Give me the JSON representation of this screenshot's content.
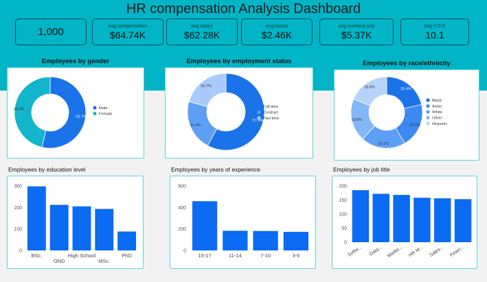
{
  "title": "HR compensation Analysis Dashboard",
  "kpis": [
    {
      "label": "",
      "value": "1,000"
    },
    {
      "label": "avg compensation",
      "value": "$64.74K"
    },
    {
      "label": "avg salary",
      "value": "$62.28K"
    },
    {
      "label": "avg bonus",
      "value": "$2.46K"
    },
    {
      "label": "avg overtime pay",
      "value": "$5.37K"
    },
    {
      "label": "avg Y.O.E",
      "value": "10.1"
    }
  ],
  "colors": {
    "band": "#02b5c6",
    "blue": "#1a73e8",
    "teal": "#12b5cb",
    "bar": "#0b6bf3"
  },
  "chart_data": [
    {
      "type": "pie",
      "title": "Employees by gender",
      "labels": [
        "Male",
        "Female"
      ],
      "values": [
        53.7,
        46.3
      ],
      "slice_labels": [
        "53.7%",
        "46.3%"
      ],
      "colors": [
        "#1a73e8",
        "#12b5cb"
      ],
      "legend": "right"
    },
    {
      "type": "pie",
      "title": "Employees by employment status",
      "labels": [
        "Full-time",
        "Contract",
        "Part-time"
      ],
      "values": [
        57.9,
        21.4,
        20.7
      ],
      "slice_labels": [
        "57.9%",
        "21.4%",
        "20.7%"
      ],
      "colors": [
        "#1a73e8",
        "#5e9ff6",
        "#a8cbfb"
      ],
      "legend": "right"
    },
    {
      "type": "pie",
      "title": "Employees by race/ethnicity",
      "labels": [
        "Black",
        "Asian",
        "White",
        "Other",
        "Hispanic"
      ],
      "values": [
        21.4,
        20.2,
        20.1,
        19.5,
        18.8
      ],
      "slice_labels": [
        "21.4%",
        "20.2%",
        "20.1%",
        "19.5%",
        "18.8%"
      ],
      "colors": [
        "#1a73e8",
        "#3d89f0",
        "#5e9ff6",
        "#82b6f8",
        "#b6d3fb"
      ],
      "legend": "right"
    },
    {
      "type": "bar",
      "title": "Employees by education level",
      "categories": [
        "BSc.",
        "OND",
        "High School",
        "MSc.",
        "PhD"
      ],
      "values": [
        298,
        212,
        205,
        193,
        88
      ],
      "ylim": [
        0,
        300
      ],
      "yticks": [
        0,
        100,
        200,
        300
      ],
      "grid": false
    },
    {
      "type": "bar",
      "title": "Employees by years of experience",
      "categories": [
        "15-17",
        "11-14",
        "7-10",
        "3-6"
      ],
      "values": [
        458,
        183,
        181,
        173
      ],
      "ylim": [
        0,
        600
      ],
      "yticks": [
        0,
        200,
        400,
        600
      ],
      "grid": false
    },
    {
      "type": "bar",
      "title": "Employees by job title",
      "categories": [
        "Softw...",
        "Data...",
        "Marke...",
        "HR M...",
        "Sales...",
        "Finan..."
      ],
      "values": [
        185,
        172,
        168,
        158,
        156,
        153
      ],
      "ylim": [
        0,
        200
      ],
      "yticks": [
        0,
        50,
        100,
        150,
        200
      ],
      "grid": false
    }
  ]
}
